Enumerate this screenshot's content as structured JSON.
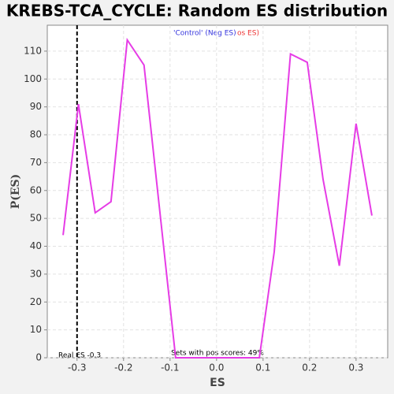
{
  "chart_data": {
    "type": "line",
    "title": "KREBS-TCA_CYCLE: Random ES distribution",
    "xlabel": "ES",
    "ylabel": "P(ES)",
    "legend": [
      {
        "text": "'Control' (Neg ES)",
        "color": "#3333dd"
      },
      {
        "text": "os ES)",
        "color": "#ee3333"
      }
    ],
    "annotations": {
      "real_es": "Real ES -0.3",
      "pos_scores": "Sets with pos scores: 49%"
    },
    "vline": -0.3,
    "x": [
      -0.33,
      -0.297,
      -0.261,
      -0.227,
      -0.192,
      -0.156,
      -0.088,
      -0.053,
      -0.017,
      0.019,
      0.054,
      0.092,
      0.124,
      0.159,
      0.195,
      0.229,
      0.264,
      0.3,
      0.334
    ],
    "series": [
      {
        "name": "P(ES)",
        "color": "#e63ce6",
        "values": [
          44,
          91,
          52,
          56,
          114,
          105,
          0,
          0,
          0,
          0,
          0,
          0,
          38,
          109,
          106,
          64,
          33,
          84,
          51
        ]
      }
    ],
    "xlim": [
      -0.364,
      0.368
    ],
    "ylim": [
      0,
      119.3
    ],
    "xticks": [
      -0.3,
      -0.2,
      -0.1,
      {
        "value": 0,
        "label": "0.0"
      },
      0.1,
      0.2,
      0.3
    ],
    "yticks": [
      0,
      10,
      20,
      30,
      40,
      50,
      60,
      70,
      80,
      90,
      100,
      110
    ],
    "grid": true
  }
}
